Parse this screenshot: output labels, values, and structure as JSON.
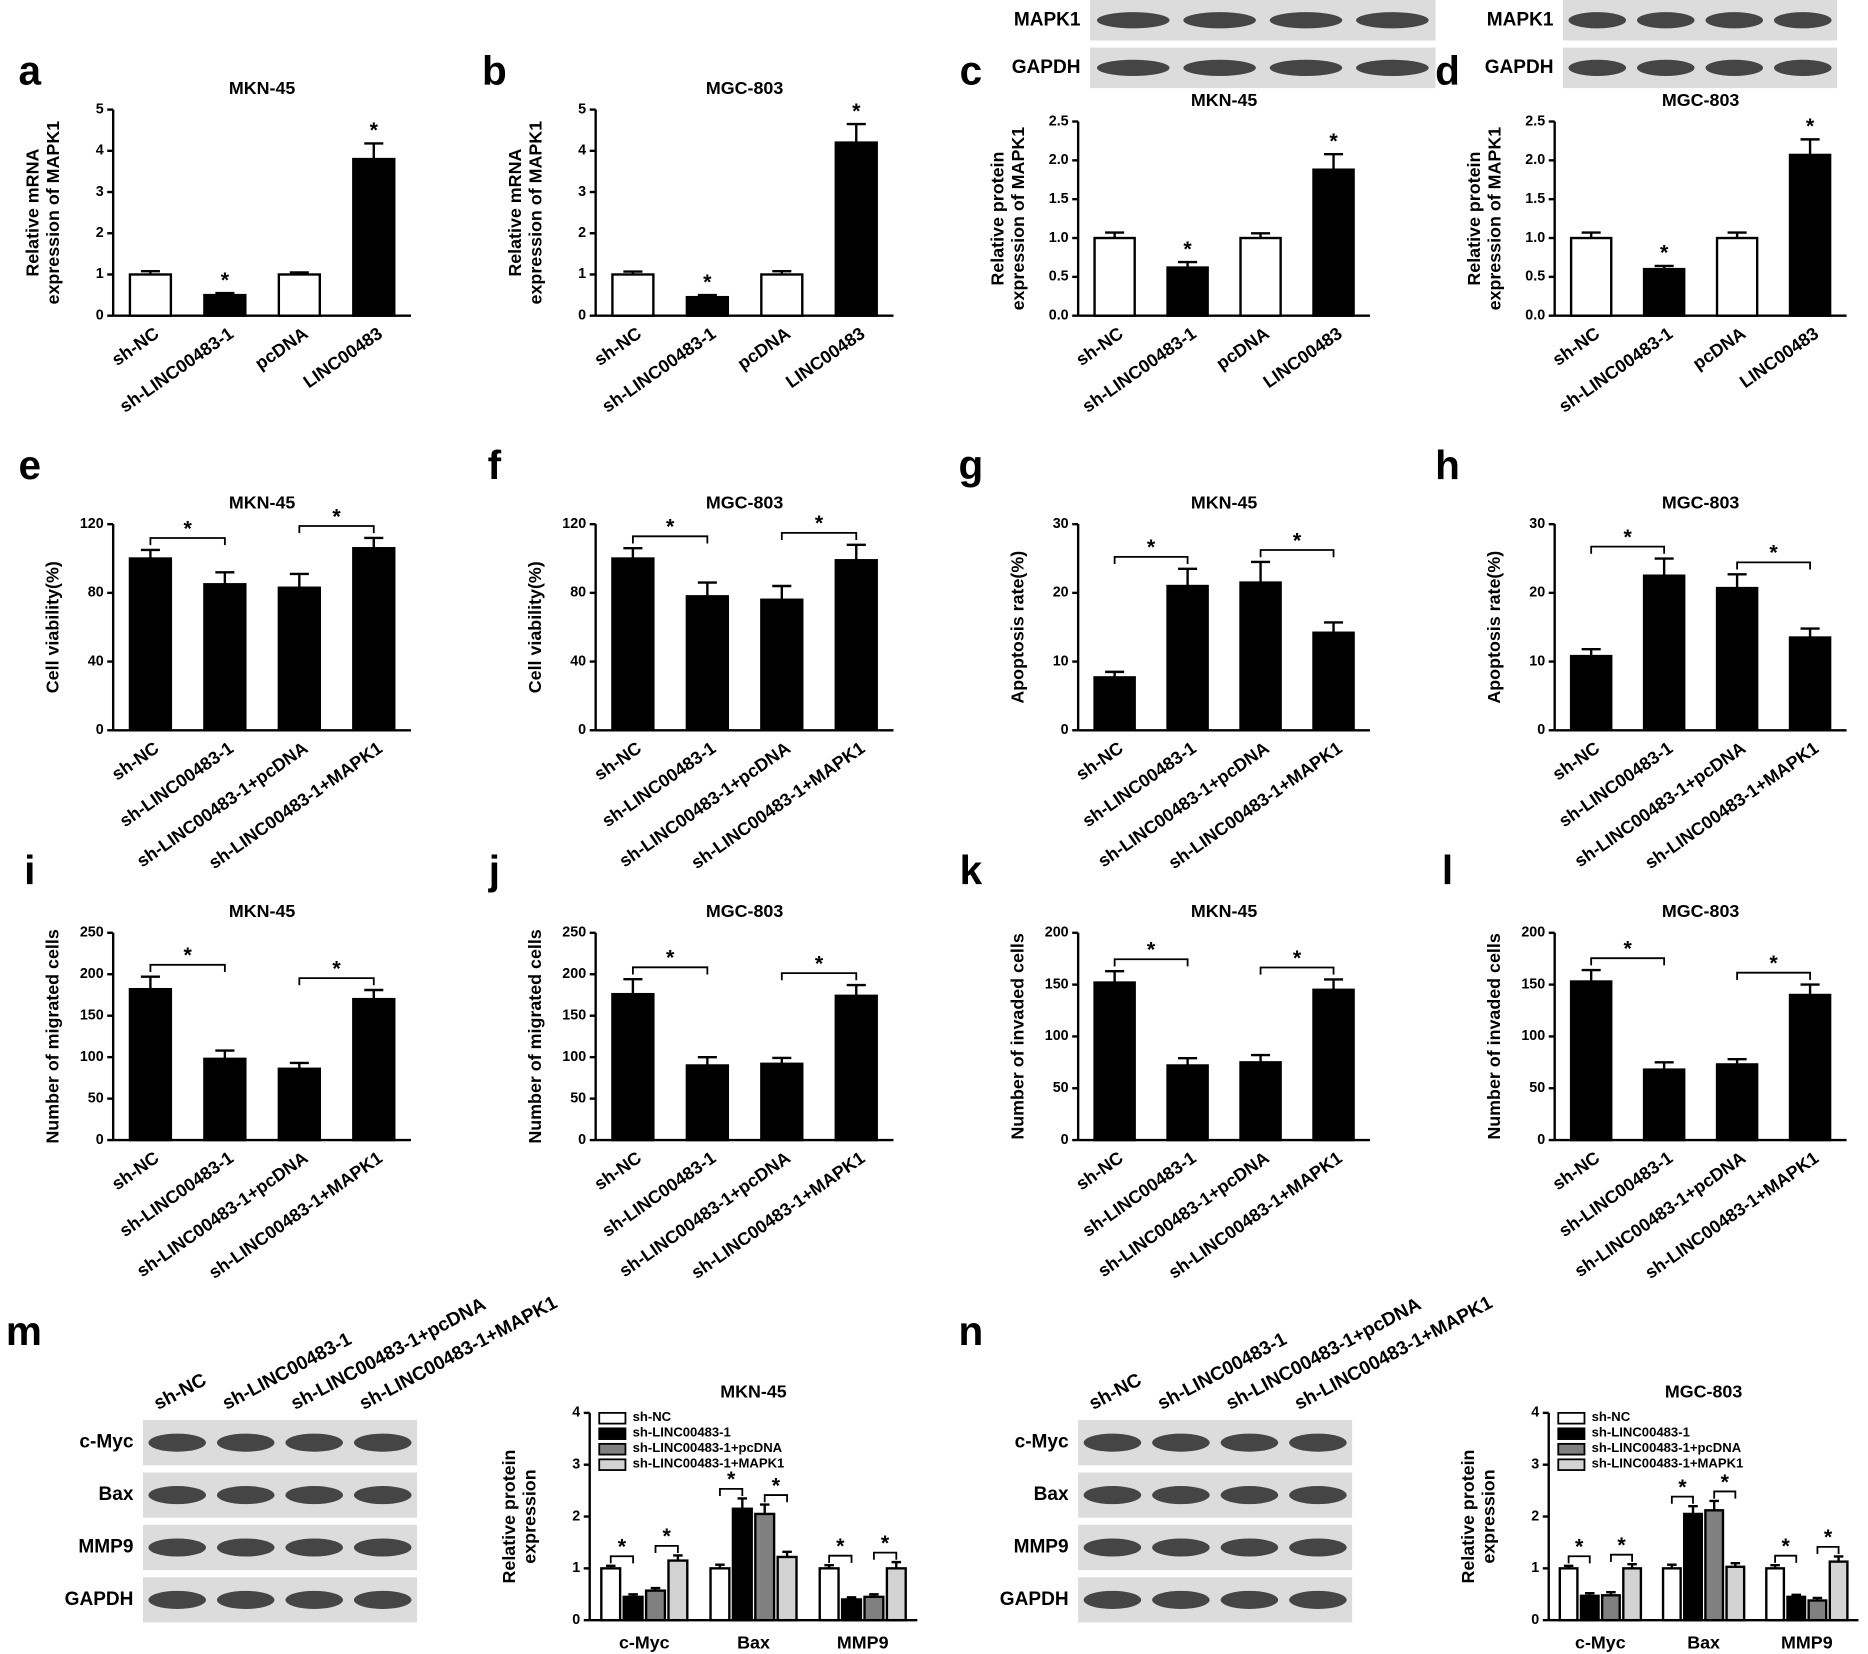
{
  "chart_data": [
    {
      "type": "bar",
      "panel": "a",
      "title": "MKN-45",
      "ylabel": [
        "Relative mRNA",
        "expression of MAPK1"
      ],
      "categories": [
        "sh-NC",
        "sh-LINC00483-1",
        "pcDNA",
        "LINC00483"
      ],
      "values": [
        1.0,
        0.5,
        1.0,
        3.8
      ],
      "errors": [
        0.08,
        0.05,
        0.05,
        0.38
      ],
      "colors": [
        "#ffffff",
        "#000000",
        "#ffffff",
        "#000000"
      ],
      "significance": [
        null,
        "*",
        null,
        "*"
      ],
      "ylim": [
        0,
        5
      ],
      "yticks": [
        0,
        1,
        2,
        3,
        4,
        5
      ]
    },
    {
      "type": "bar",
      "panel": "b",
      "title": "MGC-803",
      "ylabel": [
        "Relative mRNA",
        "expression of MAPK1"
      ],
      "categories": [
        "sh-NC",
        "sh-LINC00483-1",
        "pcDNA",
        "LINC00483"
      ],
      "values": [
        1.0,
        0.45,
        1.0,
        4.2
      ],
      "errors": [
        0.07,
        0.05,
        0.08,
        0.45
      ],
      "colors": [
        "#ffffff",
        "#000000",
        "#ffffff",
        "#000000"
      ],
      "significance": [
        null,
        "*",
        null,
        "*"
      ],
      "ylim": [
        0,
        5
      ],
      "yticks": [
        0,
        1,
        2,
        3,
        4,
        5
      ]
    },
    {
      "type": "bar",
      "panel": "c",
      "title": "MKN-45",
      "ylabel": [
        "Relative protein",
        "expression of MAPK1"
      ],
      "blot": {
        "labels": [
          "MAPK1",
          "GAPDH"
        ]
      },
      "categories": [
        "sh-NC",
        "sh-LINC00483-1",
        "pcDNA",
        "LINC00483"
      ],
      "values": [
        1.0,
        0.62,
        1.0,
        1.88
      ],
      "errors": [
        0.07,
        0.07,
        0.06,
        0.2
      ],
      "colors": [
        "#ffffff",
        "#000000",
        "#ffffff",
        "#000000"
      ],
      "significance": [
        null,
        "*",
        null,
        "*"
      ],
      "ylim": [
        0,
        2.5
      ],
      "yticks": [
        {
          "value": 0,
          "label": "0.0"
        },
        0.5,
        {
          "value": 1,
          "label": "1.0"
        },
        1.5,
        {
          "value": 2,
          "label": "2.0"
        },
        2.5
      ]
    },
    {
      "type": "bar",
      "panel": "d",
      "title": "MGC-803",
      "ylabel": [
        "Relative protein",
        "expression of MAPK1"
      ],
      "blot": {
        "labels": [
          "MAPK1",
          "GAPDH"
        ]
      },
      "categories": [
        "sh-NC",
        "sh-LINC00483-1",
        "pcDNA",
        "LINC00483"
      ],
      "values": [
        1.0,
        0.6,
        1.0,
        2.07
      ],
      "errors": [
        0.07,
        0.04,
        0.07,
        0.2
      ],
      "colors": [
        "#ffffff",
        "#000000",
        "#ffffff",
        "#000000"
      ],
      "significance": [
        null,
        "*",
        null,
        "*"
      ],
      "ylim": [
        0,
        2.5
      ],
      "yticks": [
        {
          "value": 0,
          "label": "0.0"
        },
        0.5,
        {
          "value": 1,
          "label": "1.0"
        },
        1.5,
        {
          "value": 2,
          "label": "2.0"
        },
        2.5
      ]
    },
    {
      "type": "bar",
      "panel": "e",
      "title": "MKN-45",
      "ylabel": [
        "Cell viability(%)"
      ],
      "categories": [
        "sh-NC",
        "sh-LINC00483-1",
        "sh-LINC00483-1+pcDNA",
        "sh-LINC00483-1+MAPK1"
      ],
      "values": [
        100,
        85,
        83,
        106
      ],
      "errors": [
        5,
        7,
        8,
        6
      ],
      "colors": [
        "#000000",
        "#000000",
        "#000000",
        "#000000"
      ],
      "significance": [
        "*",
        "*"
      ],
      "ylim": [
        0,
        120
      ],
      "yticks": [
        0,
        40,
        80,
        120
      ]
    },
    {
      "type": "bar",
      "panel": "f",
      "title": "MGC-803",
      "ylabel": [
        "Cell viability(%)"
      ],
      "categories": [
        "sh-NC",
        "sh-LINC00483-1",
        "sh-LINC00483-1+pcDNA",
        "sh-LINC00483-1+MAPK1"
      ],
      "values": [
        100,
        78,
        76,
        99
      ],
      "errors": [
        6,
        8,
        8,
        9
      ],
      "colors": [
        "#000000",
        "#000000",
        "#000000",
        "#000000"
      ],
      "significance": [
        "*",
        "*"
      ],
      "ylim": [
        0,
        120
      ],
      "yticks": [
        0,
        40,
        80,
        120
      ]
    },
    {
      "type": "bar",
      "panel": "g",
      "title": "MKN-45",
      "ylabel": [
        "Apoptosis rate(%)"
      ],
      "categories": [
        "sh-NC",
        "sh-LINC00483-1",
        "sh-LINC00483-1+pcDNA",
        "sh-LINC00483-1+MAPK1"
      ],
      "values": [
        7.7,
        21,
        21.5,
        14.2
      ],
      "errors": [
        0.8,
        2.5,
        3,
        1.5
      ],
      "colors": [
        "#000000",
        "#000000",
        "#000000",
        "#000000"
      ],
      "significance": [
        "*",
        "*"
      ],
      "ylim": [
        0,
        30
      ],
      "yticks": [
        0,
        10,
        20,
        30
      ]
    },
    {
      "type": "bar",
      "panel": "h",
      "title": "MGC-803",
      "ylabel": [
        "Apoptosis rate(%)"
      ],
      "categories": [
        "sh-NC",
        "sh-LINC00483-1",
        "sh-LINC00483-1+pcDNA",
        "sh-LINC00483-1+MAPK1"
      ],
      "values": [
        10.8,
        22.5,
        20.7,
        13.5
      ],
      "errors": [
        1,
        2.5,
        2,
        1.3
      ],
      "colors": [
        "#000000",
        "#000000",
        "#000000",
        "#000000"
      ],
      "significance": [
        "*",
        "*"
      ],
      "ylim": [
        0,
        30
      ],
      "yticks": [
        0,
        10,
        20,
        30
      ]
    },
    {
      "type": "bar",
      "panel": "i",
      "title": "MKN-45",
      "ylabel": [
        "Number of migrated cells"
      ],
      "categories": [
        "sh-NC",
        "sh-LINC00483-1",
        "sh-LINC00483-1+pcDNA",
        "sh-LINC00483-1+MAPK1"
      ],
      "values": [
        182,
        98,
        86,
        170
      ],
      "errors": [
        15,
        10,
        7,
        11
      ],
      "colors": [
        "#000000",
        "#000000",
        "#000000",
        "#000000"
      ],
      "significance": [
        "*",
        "*"
      ],
      "ylim": [
        0,
        250
      ],
      "yticks": [
        0,
        50,
        100,
        150,
        200,
        250
      ]
    },
    {
      "type": "bar",
      "panel": "j",
      "title": "MGC-803",
      "ylabel": [
        "Number of migrated cells"
      ],
      "categories": [
        "sh-NC",
        "sh-LINC00483-1",
        "sh-LINC00483-1+pcDNA",
        "sh-LINC00483-1+MAPK1"
      ],
      "values": [
        176,
        90,
        92,
        174
      ],
      "errors": [
        18,
        10,
        7,
        13
      ],
      "colors": [
        "#000000",
        "#000000",
        "#000000",
        "#000000"
      ],
      "significance": [
        "*",
        "*"
      ],
      "ylim": [
        0,
        250
      ],
      "yticks": [
        0,
        50,
        100,
        150,
        200,
        250
      ]
    },
    {
      "type": "bar",
      "panel": "k",
      "title": "MKN-45",
      "ylabel": [
        "Number of invaded cells"
      ],
      "categories": [
        "sh-NC",
        "sh-LINC00483-1",
        "sh-LINC00483-1+pcDNA",
        "sh-LINC00483-1+MAPK1"
      ],
      "values": [
        152,
        72,
        75,
        145
      ],
      "errors": [
        11,
        7,
        7,
        10
      ],
      "colors": [
        "#000000",
        "#000000",
        "#000000",
        "#000000"
      ],
      "significance": [
        "*",
        "*"
      ],
      "ylim": [
        0,
        200
      ],
      "yticks": [
        0,
        50,
        100,
        150,
        200
      ]
    },
    {
      "type": "bar",
      "panel": "l",
      "title": "MGC-803",
      "ylabel": [
        "Number of invaded cells"
      ],
      "categories": [
        "sh-NC",
        "sh-LINC00483-1",
        "sh-LINC00483-1+pcDNA",
        "sh-LINC00483-1+MAPK1"
      ],
      "values": [
        153,
        68,
        73,
        140
      ],
      "errors": [
        11,
        7,
        5,
        10
      ],
      "colors": [
        "#000000",
        "#000000",
        "#000000",
        "#000000"
      ],
      "significance": [
        "*",
        "*"
      ],
      "ylim": [
        0,
        200
      ],
      "yticks": [
        0,
        50,
        100,
        150,
        200
      ]
    },
    {
      "type": "bar",
      "panel": "m",
      "title": "MKN-45",
      "ylabel": [
        "Relative protein",
        "expression"
      ],
      "blot": {
        "lanes": [
          "sh-NC",
          "sh-LINC00483-1",
          "sh-LINC00483-1+pcDNA",
          "sh-LINC00483-1+MAPK1"
        ],
        "labels": [
          "c-Myc",
          "Bax",
          "MMP9",
          "GAPDH"
        ]
      },
      "categories": [
        "c-Myc",
        "Bax",
        "MMP9"
      ],
      "series": [
        {
          "name": "sh-NC",
          "color": "#ffffff",
          "values": [
            1.0,
            1.0,
            1.0
          ],
          "errors": [
            0.05,
            0.07,
            0.06
          ]
        },
        {
          "name": "sh-LINC00483-1",
          "color": "#000000",
          "values": [
            0.45,
            2.15,
            0.4
          ],
          "errors": [
            0.05,
            0.2,
            0.04
          ]
        },
        {
          "name": "sh-LINC00483-1+pcDNA",
          "color": "#808080",
          "values": [
            0.57,
            2.05,
            0.45
          ],
          "errors": [
            0.05,
            0.18,
            0.05
          ]
        },
        {
          "name": "sh-LINC00483-1+MAPK1",
          "color": "#d3d3d3",
          "values": [
            1.15,
            1.22,
            1.0
          ],
          "errors": [
            0.1,
            0.1,
            0.12
          ]
        }
      ],
      "significance": [
        "*",
        "*",
        "*",
        "*",
        "*",
        "*"
      ],
      "ylim": [
        0,
        4
      ],
      "yticks": [
        0,
        1,
        2,
        3,
        4
      ]
    },
    {
      "type": "bar",
      "panel": "n",
      "title": "MGC-803",
      "ylabel": [
        "Relative protein",
        "expression"
      ],
      "blot": {
        "lanes": [
          "sh-NC",
          "sh-LINC00483-1",
          "sh-LINC00483-1+pcDNA",
          "sh-LINC00483-1+MAPK1"
        ],
        "labels": [
          "c-Myc",
          "Bax",
          "MMP9",
          "GAPDH"
        ]
      },
      "categories": [
        "c-Myc",
        "Bax",
        "MMP9"
      ],
      "series": [
        {
          "name": "sh-NC",
          "color": "#ffffff",
          "values": [
            1.0,
            1.0,
            1.0
          ],
          "errors": [
            0.05,
            0.07,
            0.06
          ]
        },
        {
          "name": "sh-LINC00483-1",
          "color": "#000000",
          "values": [
            0.47,
            2.05,
            0.45
          ],
          "errors": [
            0.05,
            0.15,
            0.04
          ]
        },
        {
          "name": "sh-LINC00483-1+pcDNA",
          "color": "#808080",
          "values": [
            0.48,
            2.12,
            0.38
          ],
          "errors": [
            0.06,
            0.18,
            0.05
          ]
        },
        {
          "name": "sh-LINC00483-1+MAPK1",
          "color": "#d3d3d3",
          "values": [
            1.0,
            1.03,
            1.13
          ],
          "errors": [
            0.08,
            0.07,
            0.1
          ]
        }
      ],
      "significance": [
        "*",
        "*",
        "*",
        "*",
        "*",
        "*"
      ],
      "ylim": [
        0,
        4
      ],
      "yticks": [
        0,
        1,
        2,
        3,
        4
      ]
    }
  ]
}
